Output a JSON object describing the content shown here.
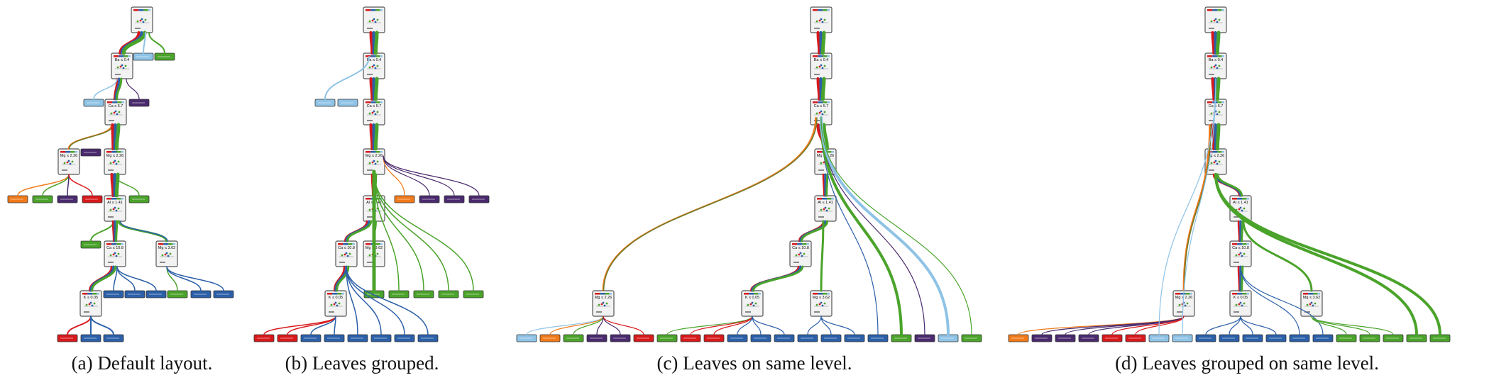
{
  "colors": {
    "red": "#d7191c",
    "blue": "#2b5fa8",
    "green": "#4aa32a",
    "lightblue": "#8ec3e6",
    "orange": "#f07a1a",
    "purple": "#4a2a6e",
    "olive": "#6e7a2a",
    "node_fill": "#f2f2f2",
    "node_border": "#555555"
  },
  "panels": [
    {
      "id": "a",
      "letter": "(a)",
      "title": "Default layout."
    },
    {
      "id": "b",
      "letter": "(b)",
      "title": "Leaves grouped."
    },
    {
      "id": "c",
      "letter": "(c)",
      "title": "Leaves on same level."
    },
    {
      "id": "d",
      "letter": "(d)",
      "title": "Leaves grouped on same level."
    }
  ],
  "node_labels": {
    "root": "",
    "n1": "Ba ≤ 0.4",
    "n2": "Ca ≤ 5.7",
    "n3": "Mg ≤ 2.26",
    "n4": "Mg ≤ 2.26",
    "n5": "Al ≤ 1.41",
    "n6": "Ca ≤ 10.8",
    "n7": "Mg ≤ 3.62",
    "n8": "K ≤ 0.05",
    "leaf_a": "Ba > 0.4",
    "leaf_b": "Ca > 5.7",
    "leaf_c": "Mg > 2.26"
  }
}
